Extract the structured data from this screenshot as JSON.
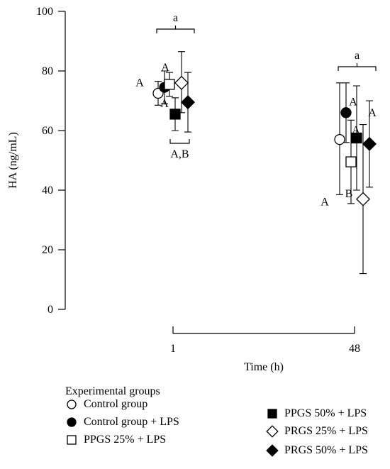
{
  "chart_data": {
    "type": "scatter",
    "xlabel": "Time (h)",
    "ylabel": "HA (ng/mL)",
    "ylim": [
      0,
      100
    ],
    "yticks": [
      0,
      20,
      40,
      60,
      80,
      100
    ],
    "categories": [
      "1",
      "48"
    ],
    "legend_title": "Experimental groups",
    "legend_position": "bottom",
    "series": [
      {
        "name": "Control group",
        "marker": "circle-open",
        "points": [
          {
            "x": "1",
            "y": 72.5,
            "err_low": 68.5,
            "err_high": 76.5,
            "label": "A"
          },
          {
            "x": "48",
            "y": 57,
            "err_low": 38.5,
            "err_high": 76,
            "label": "A"
          }
        ]
      },
      {
        "name": "Control group + LPS",
        "marker": "circle-filled",
        "points": [
          {
            "x": "1",
            "y": 74.5,
            "err_low": 69,
            "err_high": 80,
            "label": ""
          },
          {
            "x": "48",
            "y": 66,
            "err_low": 56,
            "err_high": 76,
            "label": "A"
          }
        ]
      },
      {
        "name": "PPGS 25% + LPS",
        "marker": "square-open",
        "points": [
          {
            "x": "1",
            "y": 75.5,
            "err_low": 71.5,
            "err_high": 79.5,
            "label": "A"
          },
          {
            "x": "48",
            "y": 49.5,
            "err_low": 35.5,
            "err_high": 63.5,
            "label": "B"
          }
        ]
      },
      {
        "name": "PPGS 50% + LPS",
        "marker": "square-filled",
        "points": [
          {
            "x": "1",
            "y": 65.5,
            "err_low": 60,
            "err_high": 71,
            "label": "A"
          },
          {
            "x": "48",
            "y": 57.5,
            "err_low": 40,
            "err_high": 75,
            "label": "A"
          }
        ]
      },
      {
        "name": "PRGS 25% + LPS",
        "marker": "diamond-open",
        "points": [
          {
            "x": "1",
            "y": 76,
            "err_low": 66,
            "err_high": 86.5,
            "label": ""
          },
          {
            "x": "48",
            "y": 37,
            "err_low": 12,
            "err_high": 62,
            "label": "A"
          }
        ]
      },
      {
        "name": "PRGS 50% + LPS",
        "marker": "diamond-filled",
        "points": [
          {
            "x": "1",
            "y": 69.5,
            "err_low": 59.5,
            "err_high": 79.5,
            "label": ""
          },
          {
            "x": "48",
            "y": 55.5,
            "err_low": 41,
            "err_high": 70,
            "label": "A"
          }
        ]
      }
    ],
    "annotations": [
      {
        "text": "a",
        "x": "1",
        "role": "group-top"
      },
      {
        "text": "A,B",
        "x": "1",
        "role": "group-bottom"
      },
      {
        "text": "a",
        "x": "48",
        "role": "group-top"
      }
    ]
  },
  "colors": {
    "ink": "#000000",
    "background": "#ffffff"
  }
}
